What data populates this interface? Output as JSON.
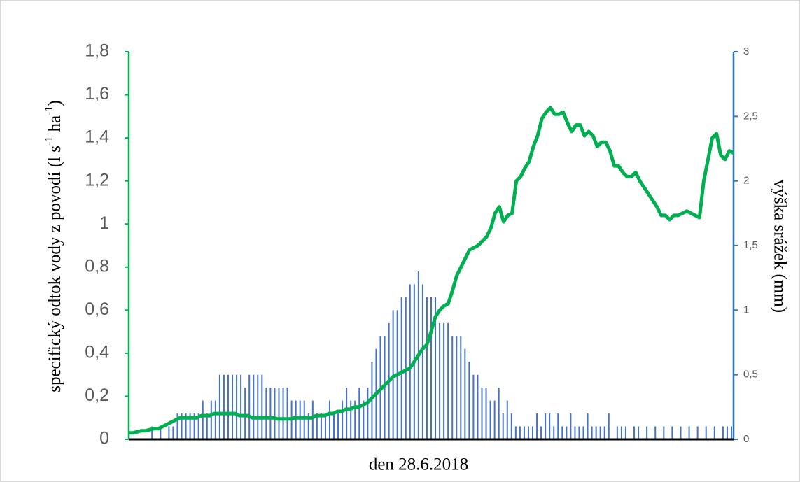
{
  "chart_data": {
    "type": "combo",
    "xlabel": "den 28.6.2018",
    "ylabel": [
      "specifický odtok vody z povodí (l s",
      "-1",
      " ha",
      "-1",
      ")"
    ],
    "y2label": "výška srážek (mm)",
    "ylim": [
      0,
      1.8
    ],
    "yticks": [
      0,
      {
        "value": 0.2,
        "label": "0,2"
      },
      {
        "value": 0.4,
        "label": "0,4"
      },
      {
        "value": 0.6,
        "label": "0,6"
      },
      {
        "value": 0.8,
        "label": "0,8"
      },
      1,
      {
        "value": 1.2,
        "label": "1,2"
      },
      {
        "value": 1.4,
        "label": "1,4"
      },
      {
        "value": 1.6,
        "label": "1,6"
      },
      {
        "value": 1.8,
        "label": "1,8"
      }
    ],
    "y2lim": [
      0,
      3
    ],
    "y2ticks": [
      0,
      {
        "value": 0.5,
        "label": "0,5"
      },
      1,
      {
        "value": 1.5,
        "label": "1,5"
      },
      2,
      {
        "value": 2.5,
        "label": "2,5"
      },
      3
    ],
    "yaxis_color": "#00b050",
    "y2axis_color": "#2e75b6",
    "series": [
      {
        "type": "bar",
        "axis": "y2",
        "color": "#4472c4",
        "values": [
          0,
          0,
          0,
          0,
          0,
          0.1,
          0,
          0.1,
          0,
          0.1,
          0.1,
          0.2,
          0.2,
          0.2,
          0.2,
          0.2,
          0.2,
          0.3,
          0.2,
          0.3,
          0.3,
          0.5,
          0.5,
          0.5,
          0.5,
          0.5,
          0.5,
          0.4,
          0.5,
          0.5,
          0.5,
          0.5,
          0.4,
          0.4,
          0.4,
          0.4,
          0.4,
          0.4,
          0.3,
          0.3,
          0.3,
          0.3,
          0.2,
          0.3,
          0.2,
          0.2,
          0.2,
          0.3,
          0.2,
          0.2,
          0.3,
          0.4,
          0.3,
          0.3,
          0.4,
          0.3,
          0.4,
          0.6,
          0.7,
          0.8,
          0.8,
          0.9,
          1.0,
          1.0,
          1.1,
          1.1,
          1.2,
          1.2,
          1.3,
          1.2,
          1.1,
          1.1,
          1.1,
          0.9,
          0.9,
          0.9,
          0.8,
          0.8,
          0.8,
          0.7,
          0.6,
          0.5,
          0.5,
          0.4,
          0.4,
          0.3,
          0.3,
          0.4,
          0.2,
          0.3,
          0.2,
          0.1,
          0.1,
          0.1,
          0.1,
          0.1,
          0.2,
          0.1,
          0.2,
          0.2,
          0.1,
          0.2,
          0.1,
          0.1,
          0.2,
          0.1,
          0.1,
          0.1,
          0.2,
          0.1,
          0.1,
          0.1,
          0.1,
          0.2,
          0,
          0.1,
          0.1,
          0.1,
          0,
          0.1,
          0.1,
          0,
          0.1,
          0,
          0.1,
          0,
          0.1,
          0,
          0.1,
          0,
          0.1,
          0,
          0.1,
          0,
          0.1,
          0,
          0.1,
          0,
          0.1,
          0,
          0.1,
          0.1,
          0.1
        ]
      },
      {
        "type": "line",
        "axis": "y",
        "color": "#00b050",
        "values": [
          0.03,
          0.03,
          0.035,
          0.04,
          0.04,
          0.045,
          0.05,
          0.05,
          0.06,
          0.07,
          0.08,
          0.09,
          0.1,
          0.1,
          0.1,
          0.1,
          0.1,
          0.11,
          0.11,
          0.11,
          0.12,
          0.12,
          0.12,
          0.12,
          0.12,
          0.12,
          0.11,
          0.11,
          0.11,
          0.1,
          0.1,
          0.1,
          0.1,
          0.1,
          0.1,
          0.095,
          0.095,
          0.095,
          0.095,
          0.1,
          0.1,
          0.1,
          0.1,
          0.1,
          0.11,
          0.11,
          0.11,
          0.12,
          0.12,
          0.13,
          0.13,
          0.14,
          0.14,
          0.15,
          0.15,
          0.16,
          0.17,
          0.19,
          0.21,
          0.23,
          0.25,
          0.27,
          0.29,
          0.3,
          0.31,
          0.32,
          0.33,
          0.36,
          0.39,
          0.42,
          0.44,
          0.5,
          0.57,
          0.6,
          0.62,
          0.63,
          0.69,
          0.76,
          0.8,
          0.84,
          0.88,
          0.89,
          0.9,
          0.92,
          0.94,
          0.98,
          1.05,
          1.08,
          1.01,
          1.04,
          1.05,
          1.2,
          1.22,
          1.26,
          1.29,
          1.36,
          1.41,
          1.49,
          1.52,
          1.54,
          1.51,
          1.51,
          1.52,
          1.47,
          1.43,
          1.46,
          1.46,
          1.41,
          1.43,
          1.41,
          1.36,
          1.38,
          1.38,
          1.34,
          1.27,
          1.27,
          1.24,
          1.22,
          1.22,
          1.24,
          1.2,
          1.17,
          1.14,
          1.11,
          1.08,
          1.04,
          1.04,
          1.02,
          1.04,
          1.04,
          1.05,
          1.06,
          1.05,
          1.04,
          1.03,
          1.2,
          1.3,
          1.4,
          1.42,
          1.32,
          1.3,
          1.34,
          1.33
        ]
      }
    ]
  }
}
